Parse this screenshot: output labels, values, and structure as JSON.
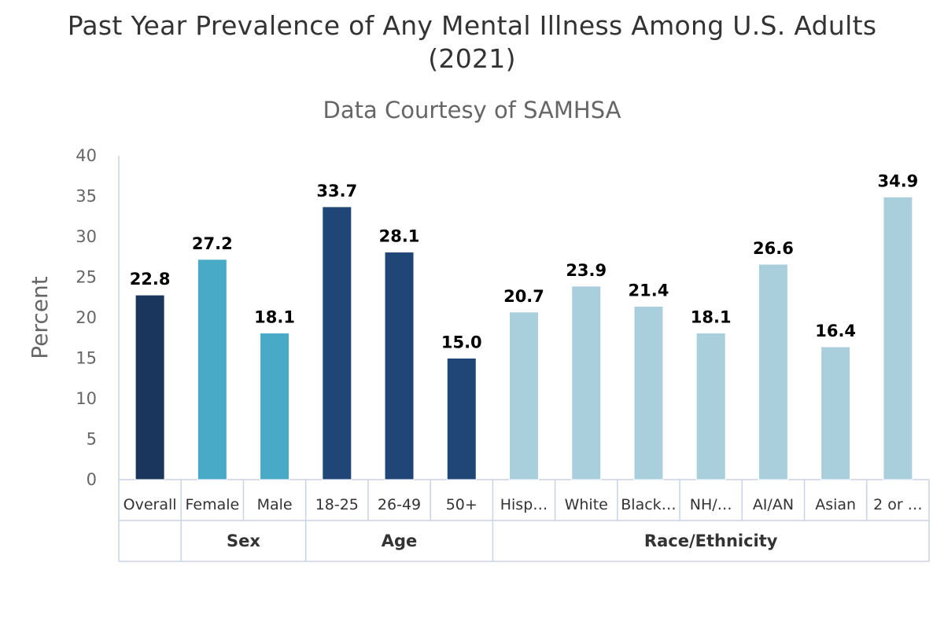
{
  "title_lines": [
    "Past Year Prevalence of Any Mental Illness Among U.S. Adults",
    "(2021)"
  ],
  "subtitle": "Data Courtesy of SAMHSA",
  "colors": {
    "overall": "#1b365d",
    "sex": "#48aac6",
    "age": "#204677",
    "race": "#a9cfdd",
    "axis": "#c8d3e6",
    "text": "#333333",
    "muted": "#666666"
  },
  "chart_data": {
    "type": "bar",
    "title": "Past Year Prevalence of Any Mental Illness Among U.S. Adults (2021)",
    "subtitle": "Data Courtesy of SAMHSA",
    "xlabel": "",
    "ylabel": "Percent",
    "ylim": [
      0,
      40
    ],
    "yticks": [
      0,
      5,
      10,
      15,
      20,
      25,
      30,
      35,
      40
    ],
    "grid": false,
    "legend": "none",
    "categories": [
      "Overall",
      "Female",
      "Male",
      "18-25",
      "26-49",
      "50+",
      "Hisp…",
      "White",
      "Black…",
      "NH/…",
      "AI/AN",
      "Asian",
      "2 or …"
    ],
    "values": [
      22.8,
      27.2,
      18.1,
      33.7,
      28.1,
      15.0,
      20.7,
      23.9,
      21.4,
      18.1,
      26.6,
      16.4,
      34.9
    ],
    "value_labels": [
      "22.8",
      "27.2",
      "18.1",
      "33.7",
      "28.1",
      "15.0",
      "20.7",
      "23.9",
      "21.4",
      "18.1",
      "26.6",
      "16.4",
      "34.9"
    ],
    "bar_groups": [
      "overall",
      "sex",
      "sex",
      "age",
      "age",
      "age",
      "race",
      "race",
      "race",
      "race",
      "race",
      "race",
      "race"
    ],
    "groups": [
      {
        "name": "",
        "start": 0,
        "count": 1
      },
      {
        "name": "Sex",
        "start": 1,
        "count": 2
      },
      {
        "name": "Age",
        "start": 3,
        "count": 3
      },
      {
        "name": "Race/Ethnicity",
        "start": 6,
        "count": 7
      }
    ]
  }
}
